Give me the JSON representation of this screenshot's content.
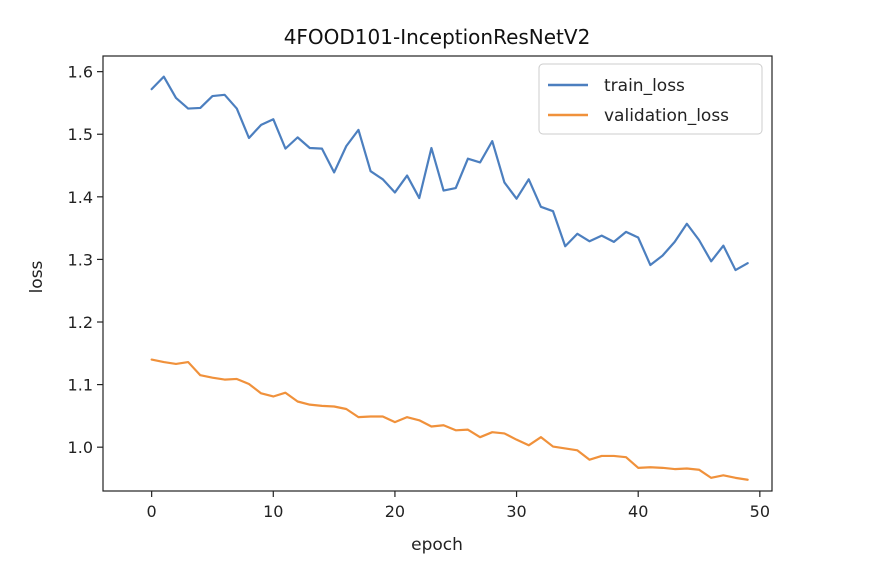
{
  "chart_data": {
    "type": "line",
    "title": "4FOOD101-InceptionResNetV2",
    "xlabel": "epoch",
    "ylabel": "loss",
    "xlim": [
      -4,
      51
    ],
    "ylim": [
      0.93,
      1.625
    ],
    "xticks": [
      0,
      10,
      20,
      30,
      40,
      50
    ],
    "yticks": [
      1.0,
      1.1,
      1.2,
      1.3,
      1.4,
      1.5,
      1.6
    ],
    "xtick_labels": [
      "0",
      "10",
      "20",
      "30",
      "40",
      "50"
    ],
    "ytick_labels": [
      "1.0",
      "1.1",
      "1.2",
      "1.3",
      "1.4",
      "1.5",
      "1.6"
    ],
    "grid": false,
    "legend_position": "top-right",
    "x": [
      0,
      1,
      2,
      3,
      4,
      5,
      6,
      7,
      8,
      9,
      10,
      11,
      12,
      13,
      14,
      15,
      16,
      17,
      18,
      19,
      20,
      21,
      22,
      23,
      24,
      25,
      26,
      27,
      28,
      29,
      30,
      31,
      32,
      33,
      34,
      35,
      36,
      37,
      38,
      39,
      40,
      41,
      42,
      43,
      44,
      45,
      46,
      47,
      48,
      49
    ],
    "series": [
      {
        "name": "train_loss",
        "color": "#4c7fbf",
        "values": [
          1.572,
          1.592,
          1.558,
          1.541,
          1.542,
          1.561,
          1.563,
          1.541,
          1.494,
          1.515,
          1.524,
          1.477,
          1.495,
          1.478,
          1.477,
          1.439,
          1.481,
          1.507,
          1.441,
          1.428,
          1.407,
          1.434,
          1.398,
          1.478,
          1.41,
          1.414,
          1.461,
          1.455,
          1.489,
          1.423,
          1.397,
          1.428,
          1.384,
          1.377,
          1.321,
          1.341,
          1.329,
          1.338,
          1.328,
          1.344,
          1.335,
          1.291,
          1.306,
          1.328,
          1.357,
          1.331,
          1.297,
          1.322,
          1.283,
          1.294
        ]
      },
      {
        "name": "validation_loss",
        "color": "#f0913b",
        "values": [
          1.14,
          1.136,
          1.133,
          1.136,
          1.115,
          1.111,
          1.108,
          1.109,
          1.101,
          1.086,
          1.081,
          1.087,
          1.073,
          1.068,
          1.066,
          1.065,
          1.061,
          1.048,
          1.049,
          1.049,
          1.04,
          1.048,
          1.043,
          1.033,
          1.035,
          1.027,
          1.028,
          1.016,
          1.024,
          1.022,
          1.012,
          1.003,
          1.016,
          1.001,
          0.998,
          0.995,
          0.98,
          0.986,
          0.986,
          0.984,
          0.967,
          0.968,
          0.967,
          0.965,
          0.966,
          0.964,
          0.951,
          0.955,
          0.951,
          0.948
        ]
      }
    ]
  }
}
